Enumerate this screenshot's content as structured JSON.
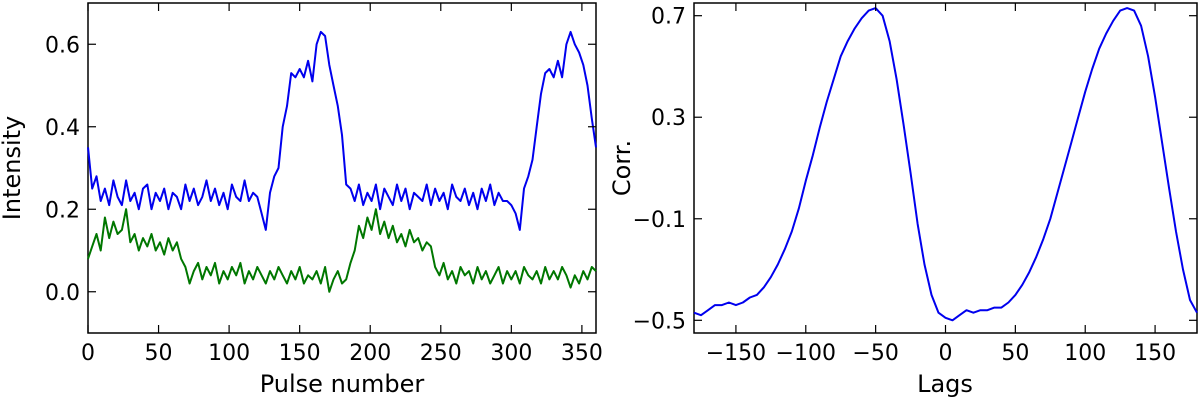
{
  "chart_data": [
    {
      "type": "line",
      "title": "",
      "xlabel": "Pulse number",
      "ylabel": "Intensity",
      "xlim": [
        0,
        360
      ],
      "ylim": [
        -0.1,
        0.7
      ],
      "xticks": [
        0,
        50,
        100,
        150,
        200,
        250,
        300,
        350
      ],
      "yticks": [
        0.0,
        0.2,
        0.4,
        0.6
      ],
      "xtick_labels": [
        "0",
        "50",
        "100",
        "150",
        "200",
        "250",
        "300",
        "350"
      ],
      "ytick_labels": [
        "0.0",
        "0.2",
        "0.4",
        "0.6"
      ],
      "grid": false,
      "series": [
        {
          "color": "#0000ee",
          "x": [
            0,
            3,
            6,
            9,
            12,
            15,
            18,
            21,
            24,
            27,
            30,
            33,
            36,
            39,
            42,
            45,
            48,
            51,
            54,
            57,
            60,
            63,
            66,
            69,
            72,
            75,
            78,
            81,
            84,
            87,
            90,
            93,
            96,
            99,
            102,
            105,
            108,
            111,
            114,
            117,
            120,
            123,
            126,
            129,
            132,
            135,
            138,
            141,
            144,
            147,
            150,
            153,
            156,
            159,
            162,
            165,
            168,
            171,
            174,
            177,
            180,
            183,
            186,
            189,
            192,
            195,
            198,
            201,
            204,
            207,
            210,
            213,
            216,
            219,
            222,
            225,
            228,
            231,
            234,
            237,
            240,
            243,
            246,
            249,
            252,
            255,
            258,
            261,
            264,
            267,
            270,
            273,
            276,
            279,
            282,
            285,
            288,
            291,
            294,
            297,
            300,
            303,
            306,
            309,
            312,
            315,
            318,
            321,
            324,
            327,
            330,
            333,
            336,
            339,
            342,
            345,
            348,
            351,
            354,
            357,
            360
          ],
          "values": [
            0.35,
            0.25,
            0.28,
            0.22,
            0.25,
            0.21,
            0.27,
            0.23,
            0.21,
            0.27,
            0.22,
            0.24,
            0.2,
            0.25,
            0.26,
            0.2,
            0.24,
            0.22,
            0.25,
            0.2,
            0.24,
            0.23,
            0.2,
            0.26,
            0.22,
            0.25,
            0.21,
            0.23,
            0.27,
            0.22,
            0.25,
            0.21,
            0.24,
            0.2,
            0.26,
            0.23,
            0.22,
            0.27,
            0.22,
            0.24,
            0.23,
            0.19,
            0.15,
            0.24,
            0.28,
            0.3,
            0.4,
            0.45,
            0.53,
            0.52,
            0.54,
            0.52,
            0.56,
            0.51,
            0.6,
            0.63,
            0.62,
            0.55,
            0.5,
            0.45,
            0.38,
            0.26,
            0.25,
            0.22,
            0.26,
            0.21,
            0.24,
            0.22,
            0.26,
            0.2,
            0.25,
            0.23,
            0.21,
            0.26,
            0.22,
            0.25,
            0.2,
            0.24,
            0.23,
            0.22,
            0.26,
            0.21,
            0.25,
            0.22,
            0.24,
            0.2,
            0.26,
            0.23,
            0.22,
            0.25,
            0.21,
            0.24,
            0.2,
            0.25,
            0.22,
            0.26,
            0.21,
            0.24,
            0.22,
            0.22,
            0.21,
            0.19,
            0.15,
            0.25,
            0.28,
            0.32,
            0.4,
            0.48,
            0.53,
            0.54,
            0.52,
            0.56,
            0.52,
            0.6,
            0.63,
            0.6,
            0.58,
            0.55,
            0.5,
            0.42,
            0.35
          ]
        },
        {
          "color": "#007700",
          "x": [
            0,
            3,
            6,
            9,
            12,
            15,
            18,
            21,
            24,
            27,
            30,
            33,
            36,
            39,
            42,
            45,
            48,
            51,
            54,
            57,
            60,
            63,
            66,
            69,
            72,
            75,
            78,
            81,
            84,
            87,
            90,
            93,
            96,
            99,
            102,
            105,
            108,
            111,
            114,
            117,
            120,
            123,
            126,
            129,
            132,
            135,
            138,
            141,
            144,
            147,
            150,
            153,
            156,
            159,
            162,
            165,
            168,
            171,
            174,
            177,
            180,
            183,
            186,
            189,
            192,
            195,
            198,
            201,
            204,
            207,
            210,
            213,
            216,
            219,
            222,
            225,
            228,
            231,
            234,
            237,
            240,
            243,
            246,
            249,
            252,
            255,
            258,
            261,
            264,
            267,
            270,
            273,
            276,
            279,
            282,
            285,
            288,
            291,
            294,
            297,
            300,
            303,
            306,
            309,
            312,
            315,
            318,
            321,
            324,
            327,
            330,
            333,
            336,
            339,
            342,
            345,
            348,
            351,
            354,
            357,
            360
          ],
          "values": [
            0.08,
            0.11,
            0.14,
            0.1,
            0.18,
            0.13,
            0.17,
            0.14,
            0.15,
            0.2,
            0.12,
            0.14,
            0.1,
            0.13,
            0.11,
            0.14,
            0.1,
            0.12,
            0.09,
            0.13,
            0.1,
            0.12,
            0.08,
            0.06,
            0.02,
            0.05,
            0.07,
            0.03,
            0.06,
            0.04,
            0.07,
            0.02,
            0.05,
            0.03,
            0.06,
            0.04,
            0.07,
            0.02,
            0.05,
            0.03,
            0.06,
            0.04,
            0.02,
            0.05,
            0.03,
            0.06,
            0.04,
            0.02,
            0.05,
            0.03,
            0.06,
            0.02,
            0.04,
            0.03,
            0.05,
            0.02,
            0.06,
            0.0,
            0.03,
            0.05,
            0.02,
            0.03,
            0.07,
            0.1,
            0.16,
            0.13,
            0.18,
            0.15,
            0.2,
            0.14,
            0.17,
            0.13,
            0.16,
            0.12,
            0.14,
            0.11,
            0.15,
            0.12,
            0.13,
            0.1,
            0.12,
            0.11,
            0.06,
            0.04,
            0.07,
            0.03,
            0.05,
            0.02,
            0.06,
            0.04,
            0.05,
            0.02,
            0.06,
            0.03,
            0.05,
            0.02,
            0.04,
            0.06,
            0.02,
            0.05,
            0.03,
            0.05,
            0.02,
            0.06,
            0.04,
            0.03,
            0.05,
            0.02,
            0.06,
            0.03,
            0.05,
            0.03,
            0.06,
            0.04,
            0.01,
            0.04,
            0.02,
            0.05,
            0.03,
            0.06,
            0.05
          ]
        }
      ]
    },
    {
      "type": "line",
      "title": "",
      "xlabel": "Lags",
      "ylabel": "Corr.",
      "xlim": [
        -180,
        180
      ],
      "ylim": [
        -0.55,
        0.75
      ],
      "xticks": [
        -150,
        -100,
        -50,
        0,
        50,
        100,
        150
      ],
      "yticks": [
        -0.5,
        -0.1,
        0.3,
        0.7
      ],
      "xtick_labels": [
        "−150",
        "−100",
        "−50",
        "0",
        "50",
        "100",
        "150"
      ],
      "ytick_labels": [
        "−0.5",
        "−0.1",
        "0.3",
        "0.7"
      ],
      "grid": false,
      "series": [
        {
          "color": "#0000ee",
          "x": [
            -180,
            -175,
            -170,
            -165,
            -160,
            -155,
            -150,
            -145,
            -140,
            -135,
            -130,
            -125,
            -120,
            -115,
            -110,
            -105,
            -100,
            -95,
            -90,
            -85,
            -80,
            -75,
            -70,
            -65,
            -60,
            -55,
            -50,
            -45,
            -40,
            -35,
            -30,
            -25,
            -20,
            -15,
            -10,
            -5,
            0,
            5,
            10,
            15,
            20,
            25,
            30,
            35,
            40,
            45,
            50,
            55,
            60,
            65,
            70,
            75,
            80,
            85,
            90,
            95,
            100,
            105,
            110,
            115,
            120,
            125,
            130,
            135,
            140,
            145,
            150,
            155,
            160,
            165,
            170,
            175,
            180
          ],
          "values": [
            -0.47,
            -0.48,
            -0.46,
            -0.44,
            -0.44,
            -0.43,
            -0.44,
            -0.43,
            -0.41,
            -0.4,
            -0.37,
            -0.33,
            -0.28,
            -0.22,
            -0.15,
            -0.06,
            0.05,
            0.15,
            0.26,
            0.36,
            0.45,
            0.54,
            0.6,
            0.65,
            0.69,
            0.72,
            0.73,
            0.7,
            0.6,
            0.45,
            0.27,
            0.08,
            -0.12,
            -0.28,
            -0.4,
            -0.47,
            -0.49,
            -0.5,
            -0.48,
            -0.46,
            -0.47,
            -0.46,
            -0.46,
            -0.45,
            -0.45,
            -0.43,
            -0.4,
            -0.36,
            -0.31,
            -0.25,
            -0.18,
            -0.1,
            0.0,
            0.1,
            0.2,
            0.3,
            0.4,
            0.49,
            0.57,
            0.63,
            0.68,
            0.72,
            0.73,
            0.72,
            0.66,
            0.54,
            0.38,
            0.2,
            0.02,
            -0.15,
            -0.3,
            -0.42,
            -0.47
          ]
        }
      ]
    }
  ]
}
